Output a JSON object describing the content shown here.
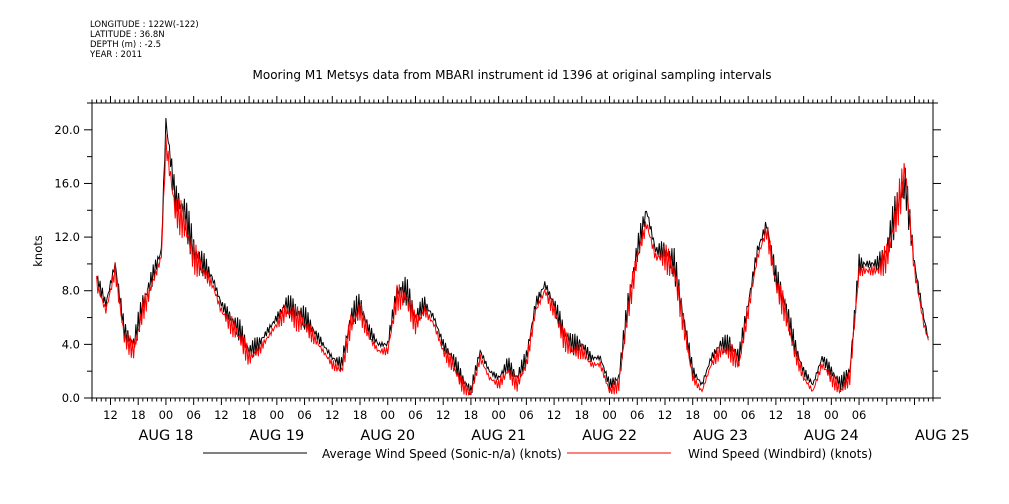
{
  "header": {
    "longitude": "LONGITUDE : 122W(-122)",
    "latitude": "LATITUDE : 36.8N",
    "depth": "DEPTH (m) : -2.5",
    "year": "YEAR : 2011"
  },
  "chart_data": {
    "type": "line",
    "title": "Mooring M1 Metsys data from MBARI instrument id 1396 at original sampling intervals",
    "ylabel": "knots",
    "xlabel": "",
    "ylim": [
      0,
      22
    ],
    "yticks": [
      "0.0",
      "4.0",
      "8.0",
      "12.0",
      "16.0",
      "20.0"
    ],
    "xlim_hours": [
      8,
      190
    ],
    "hour_ticks": [
      "12",
      "18",
      "00",
      "06",
      "12",
      "18",
      "00",
      "06",
      "12",
      "18",
      "00",
      "06",
      "12",
      "18",
      "00",
      "06",
      "12",
      "18",
      "00",
      "06",
      "12",
      "18",
      "00",
      "06",
      "12",
      "18",
      "00",
      "06"
    ],
    "days": [
      "AUG 18",
      "AUG 19",
      "AUG 20",
      "AUG 21",
      "AUG 22",
      "AUG 23",
      "AUG 24",
      "AUG 25"
    ],
    "grid": false,
    "legend_position": "bottom",
    "series": [
      {
        "name": "Average Wind Speed (Sonic-n/a) (knots)",
        "color": "#000000",
        "x_hours": [
          9,
          11,
          13,
          15,
          17,
          19,
          21,
          23,
          24,
          26,
          28,
          30,
          32,
          34,
          36,
          38,
          40,
          42,
          44,
          46,
          48,
          50,
          52,
          54,
          56,
          58,
          60,
          62,
          64,
          66,
          68,
          70,
          72,
          74,
          76,
          78,
          80,
          82,
          84,
          86,
          88,
          90,
          92,
          94,
          96,
          98,
          100,
          102,
          104,
          106,
          108,
          110,
          112,
          114,
          116,
          118,
          120,
          122,
          124,
          126,
          128,
          130,
          132,
          134,
          136,
          138,
          140,
          142,
          144,
          146,
          148,
          150,
          152,
          154,
          156,
          158,
          160,
          162,
          164,
          166,
          168,
          170,
          172,
          174,
          176,
          178,
          180,
          182,
          184,
          186,
          188,
          189
        ],
        "y": [
          9,
          7,
          10,
          5,
          4,
          7,
          9,
          11,
          20.6,
          15,
          14,
          11,
          10,
          9,
          7,
          6,
          5,
          3.5,
          4,
          5,
          6,
          7,
          6.5,
          6,
          5,
          4,
          3,
          2.5,
          6,
          7,
          5,
          4,
          4,
          8,
          8,
          6,
          7,
          6,
          4,
          3,
          1.5,
          0.5,
          3.5,
          2,
          1.5,
          2.5,
          1.5,
          3,
          7,
          8.5,
          7,
          5,
          4,
          4,
          3,
          3,
          1,
          1.5,
          7,
          11,
          14,
          11,
          11,
          10,
          6,
          2,
          1,
          3,
          4,
          4,
          3,
          7,
          11,
          13,
          9,
          7,
          4,
          2,
          1,
          3,
          2,
          1,
          2,
          10,
          10,
          10,
          11,
          14,
          16,
          10,
          6,
          4.5
        ]
      },
      {
        "name": "Wind Speed (Windbird) (knots)",
        "color": "#ff0000",
        "x_hours": [
          9,
          11,
          13,
          15,
          17,
          19,
          21,
          23,
          24,
          26,
          28,
          30,
          32,
          34,
          36,
          38,
          40,
          42,
          44,
          46,
          48,
          50,
          52,
          54,
          56,
          58,
          60,
          62,
          64,
          66,
          68,
          70,
          72,
          74,
          76,
          78,
          80,
          82,
          84,
          86,
          88,
          90,
          92,
          94,
          96,
          98,
          100,
          102,
          104,
          106,
          108,
          110,
          112,
          114,
          116,
          118,
          120,
          122,
          124,
          126,
          128,
          130,
          132,
          134,
          136,
          138,
          140,
          142,
          144,
          146,
          148,
          150,
          152,
          154,
          156,
          158,
          160,
          162,
          164,
          166,
          168,
          170,
          172,
          174,
          176,
          178,
          180,
          182,
          184,
          186,
          188,
          189
        ],
        "y": [
          8.5,
          6.5,
          9.5,
          4.5,
          3.5,
          6.5,
          8.5,
          10.5,
          19,
          14,
          13,
          10.5,
          9.5,
          8.5,
          6.5,
          5.5,
          4.5,
          3,
          3.5,
          4.5,
          5.5,
          6.5,
          6,
          5.5,
          4.5,
          3.5,
          2.5,
          2,
          5.5,
          6.5,
          4.5,
          3.5,
          3.5,
          7.5,
          7.5,
          5.5,
          6.5,
          5.5,
          3.5,
          2.5,
          1,
          0.3,
          3,
          1.5,
          1,
          2,
          1,
          2.5,
          6.5,
          8,
          6.5,
          4.5,
          3.5,
          3.5,
          2.5,
          2.5,
          0.5,
          1,
          6.5,
          10.5,
          13,
          10.5,
          10.5,
          9.5,
          5.5,
          1.5,
          0.5,
          2.5,
          3.5,
          3.5,
          2.5,
          6.5,
          10.5,
          12.5,
          8.5,
          6.5,
          3.5,
          1.5,
          0.5,
          2.5,
          1.5,
          0.5,
          1.5,
          9.5,
          9.5,
          9.5,
          10.5,
          13.5,
          17,
          9.5,
          5.5,
          4.3
        ]
      }
    ]
  }
}
